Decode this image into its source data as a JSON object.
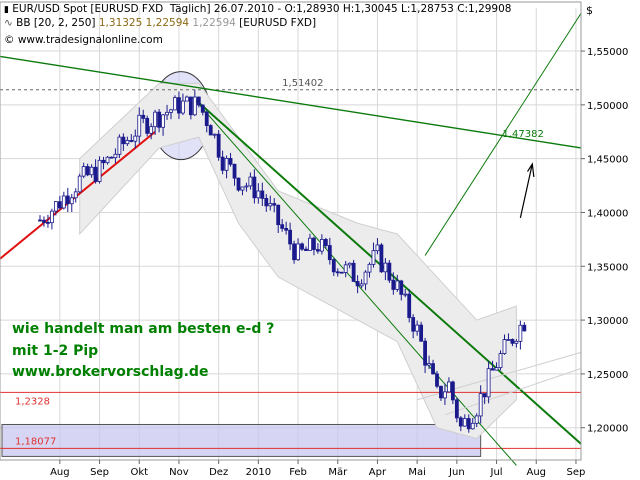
{
  "header": {
    "title": "EUR/USD Spot [EURUSD FXD  Täglich] 26.07.2010 - O:1,28930 H:1,30045 L:1,28753 C:1,29908",
    "indicator_prefix": "BB [20, 2, 250]",
    "indicator_v1": "1,31325",
    "indicator_v2": "1,22594",
    "indicator_v3": "1,22594",
    "indicator_suffix": "[EURUSD FXD]",
    "copyright": "© www.tradesignalonline.com"
  },
  "overlay_text": {
    "line1": "wie handelt man am besten e-d ?",
    "line2": "mit 1-2 Pip",
    "line3": "www.brokervorschlag.de"
  },
  "colors": {
    "candle": "#1a1a8c",
    "band": "#cfcfcf",
    "trend_green": "#0b7a0b",
    "trend_red": "#e01010",
    "hline_red": "#e03030",
    "zone_fill": "#c8c8f0",
    "grid": "#d8d8d8"
  },
  "chart_data": {
    "type": "candlestick",
    "title": "",
    "currency_symbol": "$",
    "yaxis_side": "right",
    "ylim": [
      1.17,
      1.59
    ],
    "y_ticks": [
      1.55,
      1.5,
      1.45,
      1.4,
      1.35,
      1.3,
      1.25,
      1.2
    ],
    "y_tick_labels": [
      "1,55000",
      "1,50000",
      "1,45000",
      "1,40000",
      "1,35000",
      "1,30000",
      "1,25000",
      "1,20000"
    ],
    "x_ticks": [
      "Aug",
      "Sep",
      "Okt",
      "Nov",
      "Dez",
      "2010",
      "Feb",
      "Mär",
      "Apr",
      "Mai",
      "Jun",
      "Jul",
      "Aug",
      "Sep"
    ],
    "x_range_months": [
      0,
      14
    ],
    "grid": true,
    "close_path": [
      [
        0,
        1.393
      ],
      [
        0.5,
        1.41
      ],
      [
        1,
        1.43
      ],
      [
        1.5,
        1.44
      ],
      [
        2,
        1.46
      ],
      [
        2.5,
        1.48
      ],
      [
        3,
        1.49
      ],
      [
        3.5,
        1.5
      ],
      [
        4,
        1.5
      ],
      [
        4.3,
        1.48
      ],
      [
        4.6,
        1.45
      ],
      [
        5,
        1.43
      ],
      [
        5.5,
        1.42
      ],
      [
        6,
        1.39
      ],
      [
        6.5,
        1.36
      ],
      [
        7,
        1.37
      ],
      [
        7.5,
        1.35
      ],
      [
        8,
        1.34
      ],
      [
        8.5,
        1.36
      ],
      [
        9,
        1.33
      ],
      [
        9.5,
        1.29
      ],
      [
        10,
        1.23
      ],
      [
        10.3,
        1.24
      ],
      [
        10.6,
        1.2
      ],
      [
        11,
        1.22
      ],
      [
        11.5,
        1.26
      ],
      [
        12,
        1.29
      ],
      [
        12.2,
        1.299
      ]
    ],
    "bollinger_upper": [
      [
        1,
        1.45
      ],
      [
        3,
        1.52
      ],
      [
        4,
        1.52
      ],
      [
        5,
        1.47
      ],
      [
        6,
        1.42
      ],
      [
        8,
        1.39
      ],
      [
        9,
        1.38
      ],
      [
        10,
        1.34
      ],
      [
        11,
        1.3
      ],
      [
        12,
        1.313
      ]
    ],
    "bollinger_lower": [
      [
        1,
        1.38
      ],
      [
        3,
        1.46
      ],
      [
        4,
        1.47
      ],
      [
        5,
        1.39
      ],
      [
        6,
        1.34
      ],
      [
        8,
        1.3
      ],
      [
        9,
        1.28
      ],
      [
        10,
        1.2
      ],
      [
        11,
        1.19
      ],
      [
        12,
        1.226
      ]
    ],
    "levels": [
      {
        "label": "1,51402",
        "value": 1.51402,
        "style": "dashed"
      },
      {
        "label": "1,2328",
        "value": 1.2328,
        "style": "red"
      },
      {
        "label": "1,18077",
        "value": 1.18077,
        "style": "red"
      }
    ],
    "annotations": [
      {
        "label": "1,47382",
        "value": 1.47382
      }
    ]
  }
}
